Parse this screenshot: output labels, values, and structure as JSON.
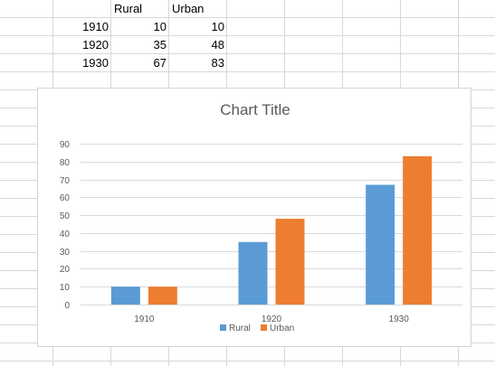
{
  "spreadsheet": {
    "headers": [
      "",
      "Rural",
      "Urban"
    ],
    "rows": [
      [
        "1910",
        "10",
        "10"
      ],
      [
        "1920",
        "35",
        "48"
      ],
      [
        "1930",
        "67",
        "83"
      ]
    ]
  },
  "chart_data": {
    "type": "bar",
    "title": "Chart Title",
    "categories": [
      "1910",
      "1920",
      "1930"
    ],
    "series": [
      {
        "name": "Rural",
        "values": [
          10,
          35,
          67
        ],
        "color": "#5b9bd5"
      },
      {
        "name": "Urban",
        "values": [
          10,
          48,
          83
        ],
        "color": "#ed7d31"
      }
    ],
    "ylim": [
      0,
      90
    ],
    "yticks": [
      "0",
      "10",
      "20",
      "30",
      "40",
      "50",
      "60",
      "70",
      "80",
      "90"
    ],
    "grid": true,
    "legend": "bottom"
  }
}
